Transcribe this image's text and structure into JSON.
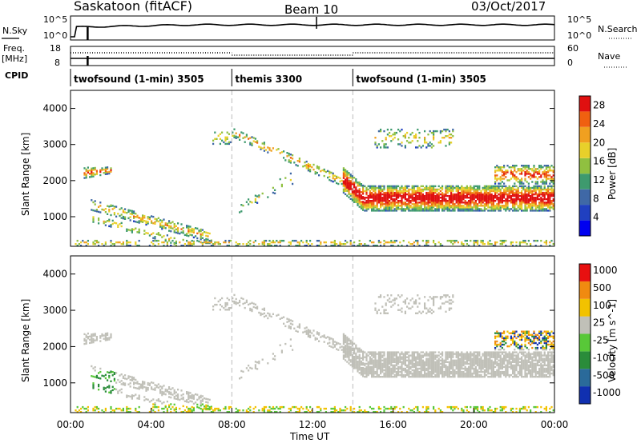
{
  "header": {
    "station": "Saskatoon (fitACF)",
    "beam": "Beam 10",
    "date": "03/Oct/2017"
  },
  "top_panels": {
    "nsky": {
      "left_label": "N.Sky",
      "right_label": "N.Search",
      "left_ticks": [
        "10^5",
        "10^0"
      ],
      "right_ticks": [
        "10^5",
        "10^0"
      ]
    },
    "freq": {
      "left_label_1": "Freq.",
      "left_label_2": "[MHz]",
      "right_label": "Nave",
      "left_ticks": [
        "18",
        "8"
      ],
      "right_ticks": [
        "60",
        "0"
      ]
    },
    "cpid": {
      "label": "CPID",
      "segments": [
        {
          "name": "twofsound (1-min) 3505",
          "start_h": 0,
          "end_h": 8
        },
        {
          "name": "themis 3300",
          "start_h": 8,
          "end_h": 14
        },
        {
          "name": "twofsound (1-min) 3505",
          "start_h": 14,
          "end_h": 24
        }
      ]
    }
  },
  "chart_data": [
    {
      "type": "heatmap",
      "title": "",
      "xlabel": "",
      "ylabel": "Slant Range [km]",
      "xlim_hours": [
        0,
        24
      ],
      "ylim_km": [
        180,
        4500
      ],
      "yticks": [
        "1000",
        "2000",
        "3000",
        "4000"
      ],
      "colorbar": {
        "label": "Power [dB]",
        "range": [
          0,
          30
        ],
        "ticks": [
          "4",
          "8",
          "12",
          "16",
          "20",
          "24",
          "28"
        ],
        "colors": [
          "#0000f0",
          "#2040c0",
          "#3f68a6",
          "#3e9a6e",
          "#90c040",
          "#e8d02a",
          "#f0a020",
          "#f06010",
          "#e01010"
        ]
      }
    },
    {
      "type": "heatmap",
      "title": "",
      "xlabel": "Time UT",
      "ylabel": "Slant Range [km]",
      "xlim_hours": [
        0,
        24
      ],
      "ylim_km": [
        180,
        4500
      ],
      "xticks": [
        "00:00",
        "04:00",
        "08:00",
        "12:00",
        "16:00",
        "20:00",
        "00:00"
      ],
      "yticks": [
        "1000",
        "2000",
        "3000",
        "4000"
      ],
      "colorbar": {
        "label": "Velocity [m s^-1]",
        "ticks": [
          "1000",
          "500",
          "100",
          "25",
          "-25",
          "-100",
          "-500",
          "-1000"
        ],
        "colors": [
          "#1030b0",
          "#2a6a9a",
          "#2a8c3a",
          "#58c838",
          "#c0c0b8",
          "#f2c200",
          "#f08a10",
          "#e81010"
        ]
      }
    }
  ]
}
